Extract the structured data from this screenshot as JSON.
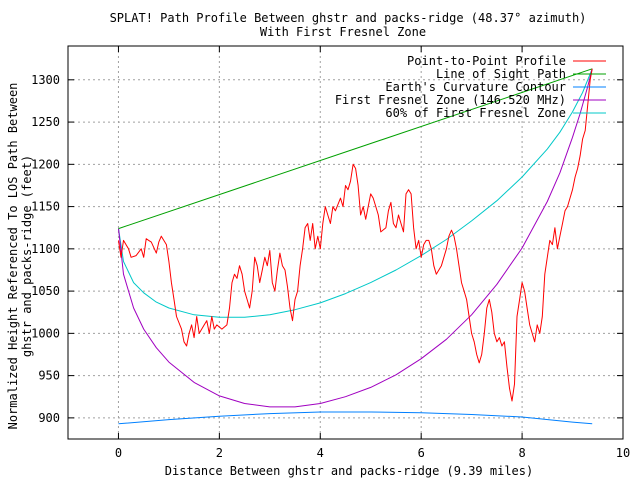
{
  "chart_data": {
    "type": "line",
    "title": "SPLAT! Path Profile Between ghstr and packs-ridge (48.37° azimuth)",
    "subtitle": "With First Fresnel Zone",
    "xlabel": "Distance Between ghstr and packs-ridge (9.39 miles)",
    "ylabel_line1": "Normalized Height Referenced To LOS Path Between",
    "ylabel_line2": "ghstr and packs-ridge (feet)",
    "xlim": [
      -1,
      10
    ],
    "ylim": [
      875,
      1340
    ],
    "x_ticks": [
      0,
      2,
      4,
      6,
      8,
      10
    ],
    "x_tick_labels": [
      "0",
      "2",
      "4",
      "6",
      "8",
      "10"
    ],
    "y_ticks": [
      900,
      950,
      1000,
      1050,
      1100,
      1150,
      1200,
      1250,
      1300
    ],
    "y_tick_labels": [
      "900",
      "950",
      "1000",
      "1050",
      "1100",
      "1150",
      "1200",
      "1250",
      "1300"
    ],
    "grid": true,
    "legend_position": "top-right",
    "series": [
      {
        "name": "Point-to-Point Profile",
        "color": "#ff0000",
        "points": [
          [
            0.0,
            1110
          ],
          [
            0.05,
            1090
          ],
          [
            0.1,
            1110
          ],
          [
            0.2,
            1100
          ],
          [
            0.25,
            1090
          ],
          [
            0.35,
            1092
          ],
          [
            0.45,
            1100
          ],
          [
            0.5,
            1090
          ],
          [
            0.55,
            1112
          ],
          [
            0.6,
            1110
          ],
          [
            0.65,
            1108
          ],
          [
            0.75,
            1095
          ],
          [
            0.8,
            1108
          ],
          [
            0.85,
            1115
          ],
          [
            0.95,
            1105
          ],
          [
            1.0,
            1085
          ],
          [
            1.05,
            1060
          ],
          [
            1.1,
            1040
          ],
          [
            1.15,
            1020
          ],
          [
            1.25,
            1005
          ],
          [
            1.3,
            990
          ],
          [
            1.35,
            985
          ],
          [
            1.4,
            1000
          ],
          [
            1.45,
            1010
          ],
          [
            1.5,
            995
          ],
          [
            1.55,
            1020
          ],
          [
            1.6,
            1000
          ],
          [
            1.7,
            1010
          ],
          [
            1.75,
            1015
          ],
          [
            1.8,
            1000
          ],
          [
            1.85,
            1020
          ],
          [
            1.9,
            1005
          ],
          [
            1.95,
            1010
          ],
          [
            2.05,
            1005
          ],
          [
            2.15,
            1010
          ],
          [
            2.2,
            1030
          ],
          [
            2.25,
            1060
          ],
          [
            2.3,
            1070
          ],
          [
            2.35,
            1065
          ],
          [
            2.4,
            1080
          ],
          [
            2.45,
            1070
          ],
          [
            2.5,
            1050
          ],
          [
            2.55,
            1040
          ],
          [
            2.6,
            1030
          ],
          [
            2.65,
            1050
          ],
          [
            2.7,
            1090
          ],
          [
            2.75,
            1080
          ],
          [
            2.8,
            1060
          ],
          [
            2.85,
            1075
          ],
          [
            2.9,
            1090
          ],
          [
            2.95,
            1080
          ],
          [
            3.0,
            1098
          ],
          [
            3.05,
            1060
          ],
          [
            3.1,
            1050
          ],
          [
            3.15,
            1075
          ],
          [
            3.2,
            1095
          ],
          [
            3.25,
            1080
          ],
          [
            3.3,
            1075
          ],
          [
            3.35,
            1055
          ],
          [
            3.4,
            1030
          ],
          [
            3.45,
            1015
          ],
          [
            3.5,
            1040
          ],
          [
            3.55,
            1050
          ],
          [
            3.6,
            1080
          ],
          [
            3.65,
            1100
          ],
          [
            3.7,
            1125
          ],
          [
            3.75,
            1130
          ],
          [
            3.8,
            1110
          ],
          [
            3.85,
            1130
          ],
          [
            3.9,
            1100
          ],
          [
            3.95,
            1115
          ],
          [
            4.0,
            1100
          ],
          [
            4.05,
            1130
          ],
          [
            4.1,
            1150
          ],
          [
            4.15,
            1140
          ],
          [
            4.2,
            1130
          ],
          [
            4.25,
            1150
          ],
          [
            4.3,
            1145
          ],
          [
            4.4,
            1160
          ],
          [
            4.45,
            1150
          ],
          [
            4.5,
            1175
          ],
          [
            4.55,
            1170
          ],
          [
            4.6,
            1180
          ],
          [
            4.65,
            1200
          ],
          [
            4.7,
            1195
          ],
          [
            4.75,
            1175
          ],
          [
            4.8,
            1140
          ],
          [
            4.85,
            1150
          ],
          [
            4.9,
            1135
          ],
          [
            5.0,
            1165
          ],
          [
            5.05,
            1160
          ],
          [
            5.1,
            1150
          ],
          [
            5.15,
            1140
          ],
          [
            5.2,
            1120
          ],
          [
            5.3,
            1125
          ],
          [
            5.35,
            1145
          ],
          [
            5.4,
            1155
          ],
          [
            5.45,
            1130
          ],
          [
            5.5,
            1125
          ],
          [
            5.55,
            1140
          ],
          [
            5.6,
            1130
          ],
          [
            5.65,
            1120
          ],
          [
            5.7,
            1165
          ],
          [
            5.75,
            1170
          ],
          [
            5.8,
            1165
          ],
          [
            5.85,
            1125
          ],
          [
            5.9,
            1100
          ],
          [
            5.95,
            1110
          ],
          [
            6.0,
            1090
          ],
          [
            6.05,
            1105
          ],
          [
            6.1,
            1110
          ],
          [
            6.15,
            1110
          ],
          [
            6.2,
            1100
          ],
          [
            6.25,
            1080
          ],
          [
            6.3,
            1070
          ],
          [
            6.4,
            1080
          ],
          [
            6.5,
            1100
          ],
          [
            6.55,
            1115
          ],
          [
            6.6,
            1122
          ],
          [
            6.65,
            1115
          ],
          [
            6.7,
            1100
          ],
          [
            6.75,
            1080
          ],
          [
            6.8,
            1060
          ],
          [
            6.85,
            1050
          ],
          [
            6.9,
            1040
          ],
          [
            6.95,
            1020
          ],
          [
            7.0,
            1000
          ],
          [
            7.05,
            990
          ],
          [
            7.1,
            975
          ],
          [
            7.15,
            965
          ],
          [
            7.2,
            975
          ],
          [
            7.25,
            1000
          ],
          [
            7.3,
            1030
          ],
          [
            7.35,
            1040
          ],
          [
            7.4,
            1025
          ],
          [
            7.45,
            1000
          ],
          [
            7.5,
            990
          ],
          [
            7.55,
            995
          ],
          [
            7.6,
            985
          ],
          [
            7.65,
            990
          ],
          [
            7.7,
            960
          ],
          [
            7.75,
            935
          ],
          [
            7.8,
            920
          ],
          [
            7.85,
            940
          ],
          [
            7.9,
            1020
          ],
          [
            7.95,
            1040
          ],
          [
            8.0,
            1060
          ],
          [
            8.05,
            1050
          ],
          [
            8.1,
            1030
          ],
          [
            8.15,
            1010
          ],
          [
            8.2,
            1000
          ],
          [
            8.25,
            990
          ],
          [
            8.3,
            1010
          ],
          [
            8.35,
            1000
          ],
          [
            8.4,
            1020
          ],
          [
            8.45,
            1070
          ],
          [
            8.5,
            1090
          ],
          [
            8.55,
            1110
          ],
          [
            8.6,
            1105
          ],
          [
            8.65,
            1125
          ],
          [
            8.7,
            1100
          ],
          [
            8.75,
            1115
          ],
          [
            8.8,
            1130
          ],
          [
            8.85,
            1145
          ],
          [
            8.9,
            1150
          ],
          [
            8.95,
            1160
          ],
          [
            9.0,
            1170
          ],
          [
            9.05,
            1185
          ],
          [
            9.1,
            1195
          ],
          [
            9.15,
            1210
          ],
          [
            9.2,
            1230
          ],
          [
            9.25,
            1240
          ],
          [
            9.3,
            1270
          ],
          [
            9.35,
            1300
          ],
          [
            9.39,
            1313
          ]
        ]
      },
      {
        "name": "Line of Sight Path",
        "color": "#00a000",
        "points": [
          [
            0.0,
            1124
          ],
          [
            9.39,
            1313
          ]
        ]
      },
      {
        "name": "Earth's Curvature Contour",
        "color": "#0080ff",
        "points": [
          [
            0.0,
            893
          ],
          [
            1.0,
            898
          ],
          [
            2.0,
            902
          ],
          [
            3.0,
            905
          ],
          [
            4.0,
            907
          ],
          [
            5.0,
            907
          ],
          [
            6.0,
            906
          ],
          [
            7.0,
            904
          ],
          [
            8.0,
            901
          ],
          [
            9.0,
            895
          ],
          [
            9.39,
            893
          ]
        ]
      },
      {
        "name": "First Fresnel Zone (146.520 MHz)",
        "color": "#a000c0",
        "points": [
          [
            0.0,
            1124
          ],
          [
            0.1,
            1070
          ],
          [
            0.3,
            1030
          ],
          [
            0.5,
            1005
          ],
          [
            0.75,
            983
          ],
          [
            1.0,
            966
          ],
          [
            1.5,
            942
          ],
          [
            2.0,
            926
          ],
          [
            2.5,
            917
          ],
          [
            3.0,
            913
          ],
          [
            3.5,
            913
          ],
          [
            4.0,
            917
          ],
          [
            4.5,
            925
          ],
          [
            5.0,
            936
          ],
          [
            5.5,
            951
          ],
          [
            6.0,
            970
          ],
          [
            6.5,
            993
          ],
          [
            7.0,
            1022
          ],
          [
            7.5,
            1058
          ],
          [
            8.0,
            1101
          ],
          [
            8.5,
            1156
          ],
          [
            8.75,
            1190
          ],
          [
            9.0,
            1232
          ],
          [
            9.15,
            1260
          ],
          [
            9.3,
            1292
          ],
          [
            9.39,
            1313
          ]
        ]
      },
      {
        "name": "60% of First Fresnel Zone",
        "color": "#00c8c8",
        "points": [
          [
            0.0,
            1124
          ],
          [
            0.1,
            1085
          ],
          [
            0.3,
            1060
          ],
          [
            0.5,
            1048
          ],
          [
            0.75,
            1037
          ],
          [
            1.0,
            1030
          ],
          [
            1.5,
            1022
          ],
          [
            2.0,
            1019
          ],
          [
            2.5,
            1019
          ],
          [
            3.0,
            1022
          ],
          [
            3.5,
            1028
          ],
          [
            4.0,
            1036
          ],
          [
            4.5,
            1047
          ],
          [
            5.0,
            1060
          ],
          [
            5.5,
            1075
          ],
          [
            6.0,
            1092
          ],
          [
            6.5,
            1111
          ],
          [
            7.0,
            1133
          ],
          [
            7.5,
            1157
          ],
          [
            8.0,
            1185
          ],
          [
            8.5,
            1218
          ],
          [
            8.75,
            1238
          ],
          [
            9.0,
            1262
          ],
          [
            9.2,
            1285
          ],
          [
            9.39,
            1313
          ]
        ]
      }
    ]
  }
}
